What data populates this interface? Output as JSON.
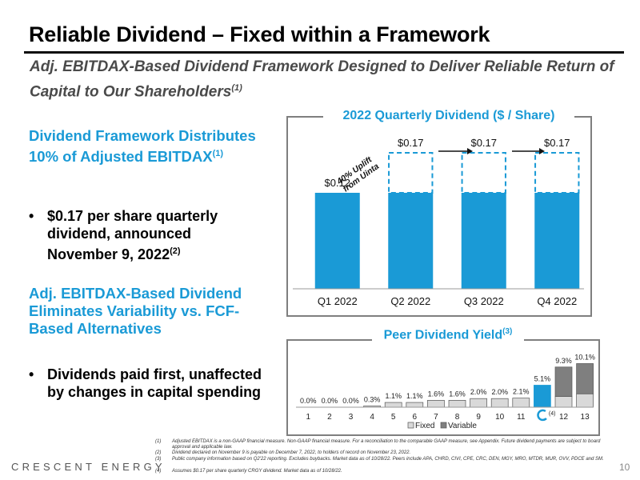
{
  "slide": {
    "title": "Reliable Dividend – Fixed within a Framework",
    "subtitle": "Adj. EBITDAX-Based Dividend Framework Designed to Deliver Reliable Return of Capital to Our Shareholders",
    "subtitle_sup": "(1)",
    "page_number": "10",
    "logo_text": "CRESCENT ENERGY"
  },
  "left": {
    "head1": "Dividend Framework Distributes 10% of Adjusted EBITDAX",
    "head1_sup": "(1)",
    "bullet1": "$0.17 per share quarterly dividend, announced November 9, 2022",
    "bullet1_sup": "(2)",
    "head2": "Adj. EBITDAX-Based Dividend Eliminates Variability vs. FCF-Based Alternatives",
    "bullet2": "Dividends paid first, unaffected by changes in capital spending",
    "bullet_glyph": "•"
  },
  "colors": {
    "accent_blue": "#1a9ad6",
    "fixed_gray": "#d9d9d9",
    "variable_gray": "#7f7f7f",
    "border_gray": "#7f7f7f"
  },
  "chart_data": [
    {
      "type": "bar",
      "title": "2022 Quarterly Dividend ($ / Share)",
      "categories": [
        "Q1 2022",
        "Q2 2022",
        "Q3 2022",
        "Q4 2022"
      ],
      "series": [
        {
          "values": [
            0.12,
            0.12,
            0.12,
            0.12
          ]
        },
        {
          "values": [
            0.0,
            0.05,
            0.05,
            0.05
          ],
          "style": "dashed-outline"
        }
      ],
      "data_labels": [
        "$0.12",
        "$0.17",
        "$0.17",
        "$0.17"
      ],
      "annotation": "40% Uplift from Uinta",
      "ylim": [
        0,
        0.2
      ]
    },
    {
      "type": "bar",
      "stacked": true,
      "title": "Peer Dividend Yield",
      "title_sup": "(3)",
      "categories": [
        "1",
        "2",
        "3",
        "4",
        "5",
        "6",
        "7",
        "8",
        "9",
        "10",
        "11",
        "",
        "12",
        "13"
      ],
      "highlight_index": 11,
      "highlight_sup": "(4)",
      "series": [
        {
          "name": "Fixed",
          "values": [
            0.0,
            0.0,
            0.0,
            0.3,
            1.1,
            1.1,
            1.6,
            1.6,
            2.0,
            2.0,
            2.1,
            5.1,
            2.5,
            3.1
          ]
        },
        {
          "name": "Variable",
          "values": [
            0,
            0,
            0,
            0,
            0,
            0,
            0,
            0,
            0,
            0,
            0,
            0,
            6.8,
            7.0
          ]
        }
      ],
      "data_labels": [
        "0.0%",
        "0.0%",
        "0.0%",
        "0.3%",
        "1.1%",
        "1.1%",
        "1.6%",
        "1.6%",
        "2.0%",
        "2.0%",
        "2.1%",
        "5.1%",
        "9.3%",
        "10.1%"
      ],
      "ylim": [
        0,
        11
      ]
    }
  ],
  "footnotes": [
    {
      "num": "(1)",
      "text": "Adjusted EBITDAX is a non-GAAP financial measure. Non-GAAP financial measure. For a reconciliation to the comparable GAAP measure, see Appendix. Future dividend payments are subject to board approval and applicable law."
    },
    {
      "num": "(2)",
      "text": "Dividend declared on November 9 is payable on December 7, 2022, to holders of record on November 23, 2022."
    },
    {
      "num": "(3)",
      "text": "Public company information based on Q2'22 reporting. Excludes buybacks. Market data as of 10/28/22. Peers include APA, CHRD, CIVI, CPE, CRC, DEN, MGY, MRO, MTDR, MUR, OVV, PDCE and SM."
    },
    {
      "num": "(4)",
      "text": "Assumes $0.17 per share quarterly CRGY dividend. Market data as of 10/28/22."
    }
  ]
}
